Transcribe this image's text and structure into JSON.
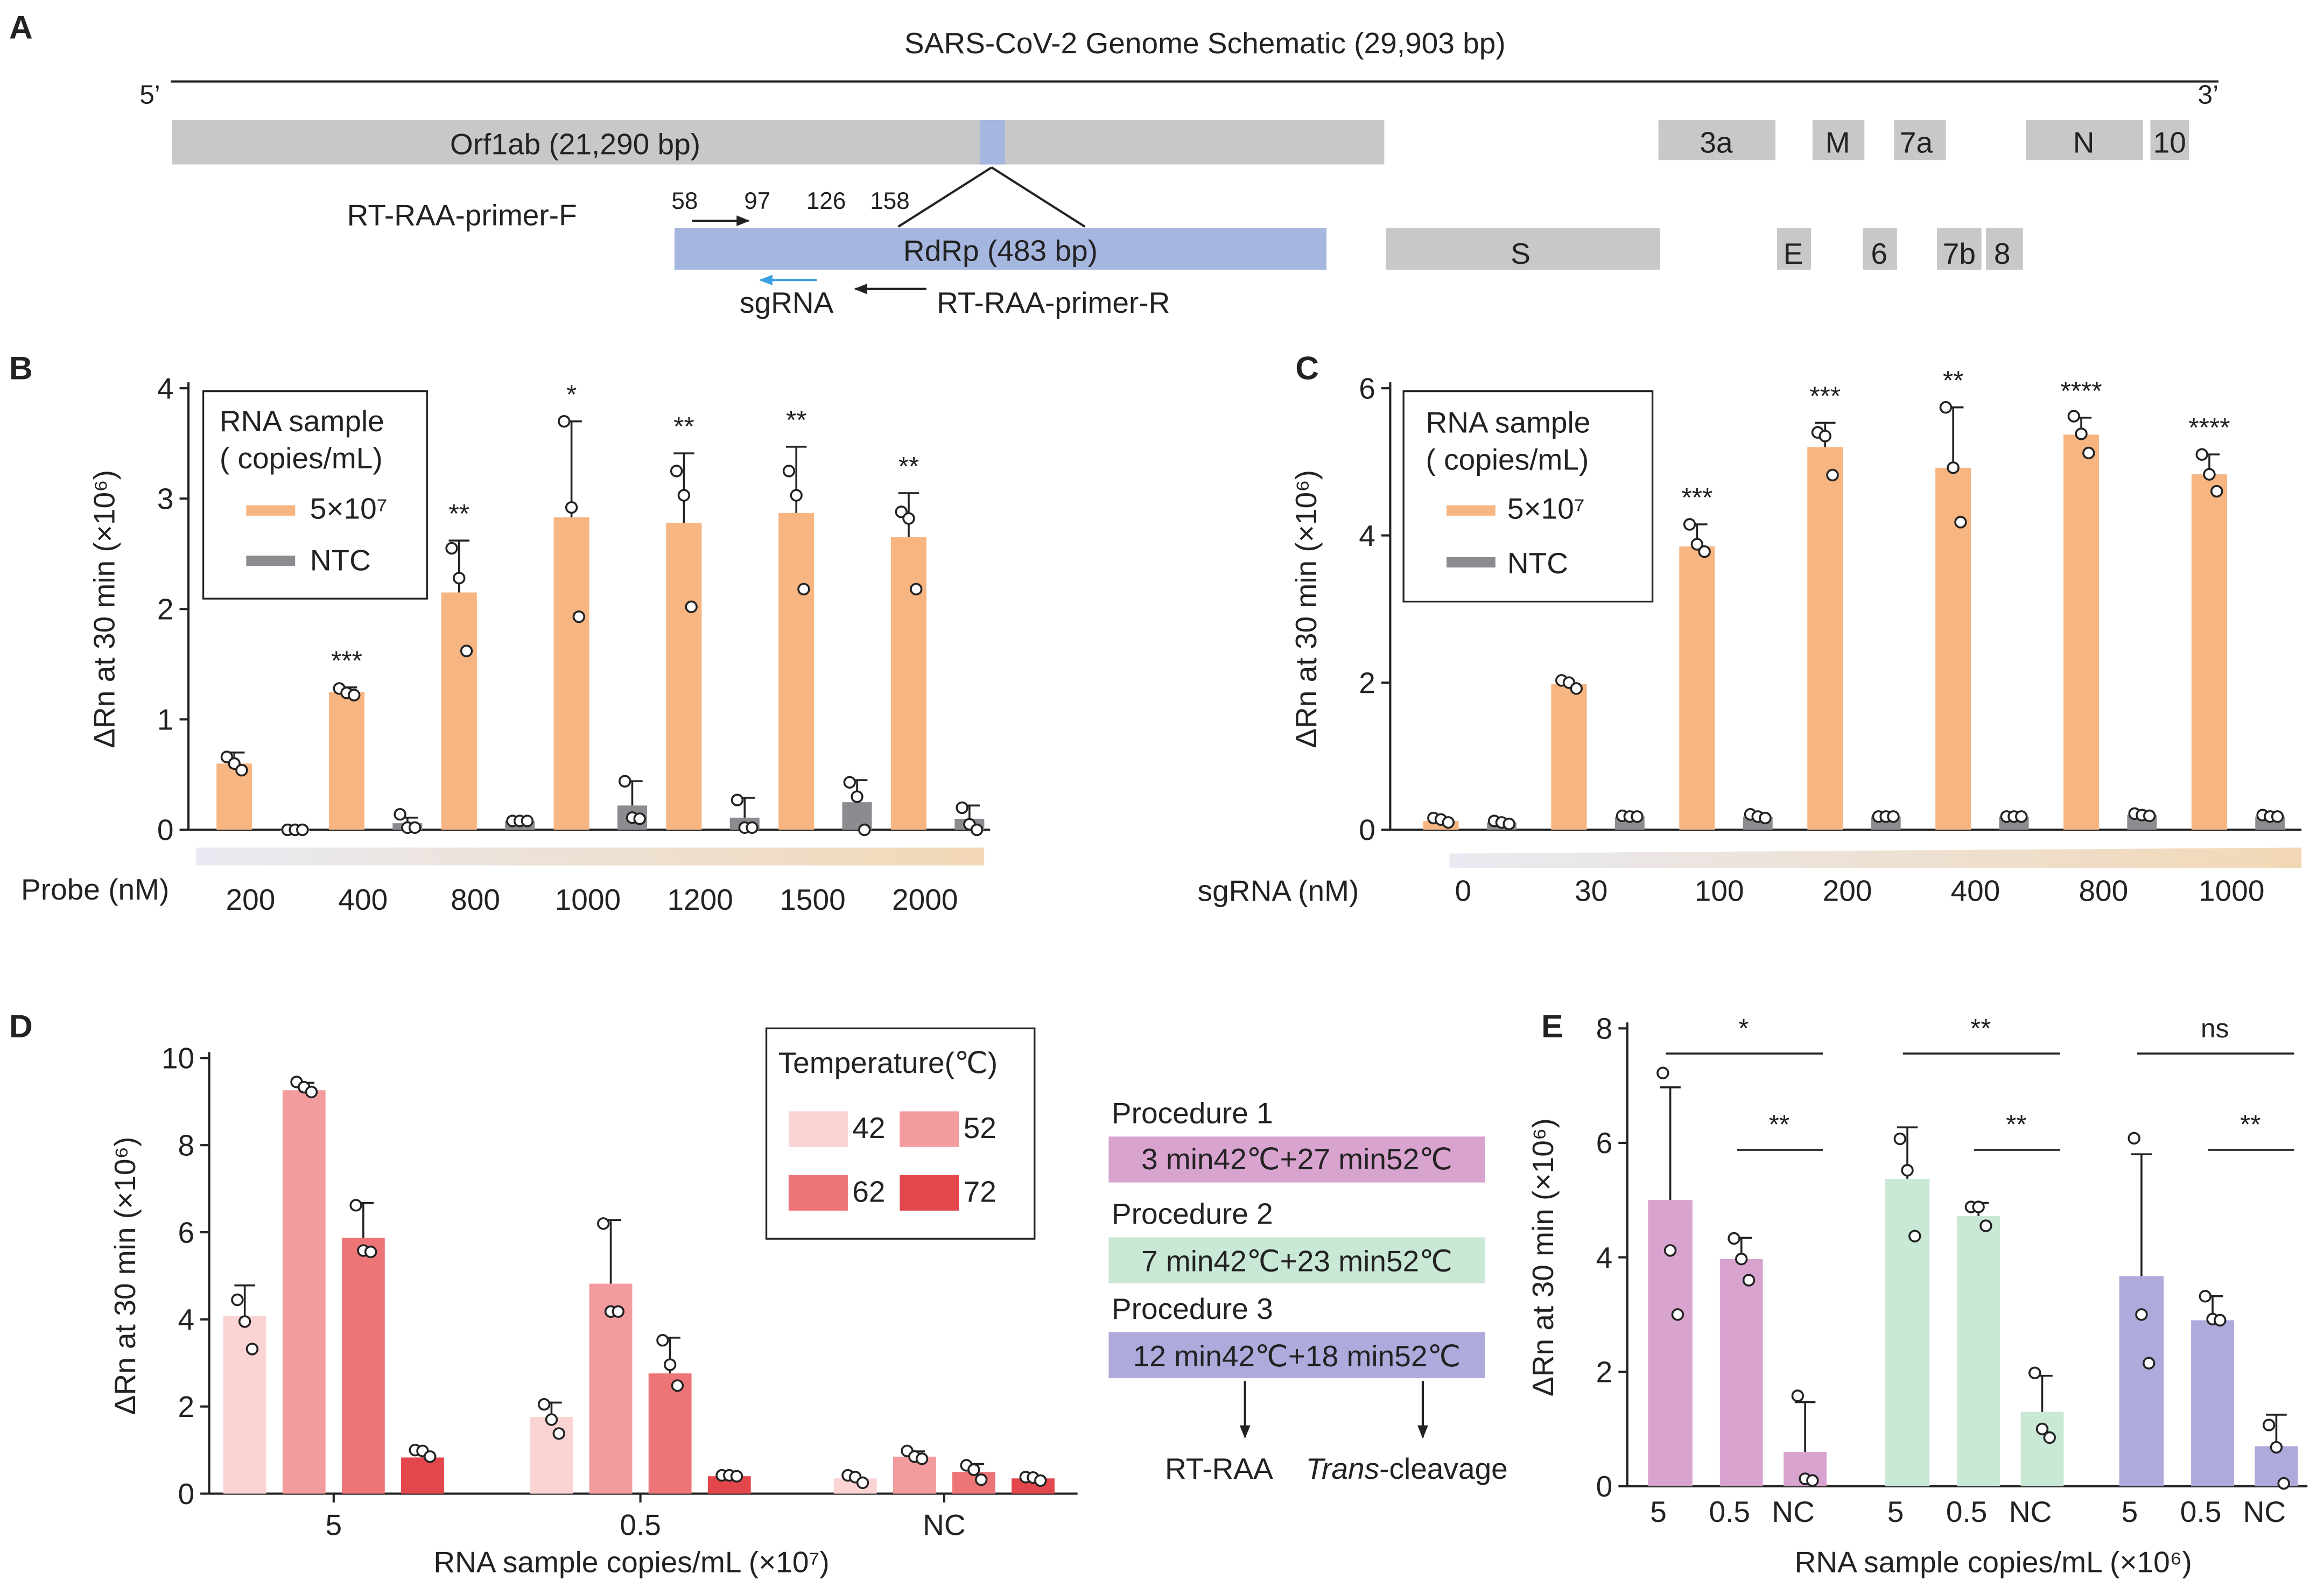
{
  "colors": {
    "gene_gray": "#c8c8ca",
    "rdrp_blue": "#a5b6df",
    "orange": "#f7b581",
    "ntc_gray": "#8c8c90",
    "sgrna_arrow": "#3a9fe0",
    "t42": "#fad3d2",
    "t52": "#f29c9e",
    "t62": "#ed7577",
    "t72": "#e3474c",
    "proc1": "#d8a3cf",
    "proc2": "#c9e8d6",
    "proc3": "#aeaadc",
    "gradient_start": "#e9eaf2",
    "gradient_end": "#f2d8b6"
  },
  "panelA": {
    "letter": "A",
    "title": "SARS-CoV-2  Genome Schematic (29,903 bp)",
    "end5": "5’",
    "end3": "3’",
    "orf1ab": "Orf1ab (21,290 bp)",
    "genes_top": [
      "3a",
      "M",
      "7a",
      "N",
      "10"
    ],
    "genes_bottom": [
      "S",
      "E",
      "6",
      "7b",
      "8"
    ],
    "rdrp": "RdRp (483 bp)",
    "primer_f": "RT-RAA-primer-F",
    "primer_r": "RT-RAA-primer-R",
    "sgrna": "sgRNA",
    "positions": [
      "58",
      "97",
      "126",
      "158"
    ]
  },
  "panelB": {
    "letter": "B",
    "legend_title": [
      "RNA sample",
      "( copies/mL)"
    ],
    "legend_items": [
      "5×10⁷",
      "NTC"
    ],
    "xaxis_title": "Probe (nM)"
  },
  "panelC": {
    "letter": "C",
    "legend_title": [
      "RNA sample",
      "( copies/mL)"
    ],
    "legend_items": [
      "5×10⁷",
      "NTC"
    ],
    "xaxis_title": "sgRNA (nM)"
  },
  "panelD": {
    "letter": "D",
    "legend_title": "Temperature(℃)",
    "procedures": [
      {
        "title": "Procedure 1",
        "text": "3 min42℃+27 min52℃"
      },
      {
        "title": "Procedure 2",
        "text": "7 min42℃+23 min52℃"
      },
      {
        "title": "Procedure 3",
        "text": "12 min42℃+18 min52℃"
      }
    ],
    "flow_left": "RT-RAA",
    "flow_right_italic": "Trans",
    "flow_right_rest": "-cleavage"
  },
  "panelE": {
    "letter": "E"
  },
  "chart_data": [
    {
      "id": "B",
      "type": "bar",
      "title": "",
      "ylabel": "ΔRn at 30 min  (×10⁶)",
      "xlabel": "Probe (nM)",
      "ylim": [
        0,
        4
      ],
      "yticks": [
        0,
        1,
        2,
        3,
        4
      ],
      "categories": [
        "200",
        "400",
        "800",
        "1000",
        "1200",
        "1500",
        "2000"
      ],
      "series": [
        {
          "name": "5×10⁷",
          "values": [
            0.6,
            1.25,
            2.15,
            2.83,
            2.78,
            2.87,
            2.65
          ],
          "errors": [
            0.1,
            0.04,
            0.47,
            0.87,
            0.63,
            0.6,
            0.4
          ],
          "points": [
            [
              0.66,
              0.6,
              0.54
            ],
            [
              1.28,
              1.24,
              1.22
            ],
            [
              2.55,
              2.28,
              1.62
            ],
            [
              3.7,
              2.92,
              1.93
            ],
            [
              3.25,
              3.03,
              2.02
            ],
            [
              3.25,
              3.03,
              2.18
            ],
            [
              2.88,
              2.82,
              2.18
            ]
          ]
        },
        {
          "name": "NTC",
          "values": [
            0.0,
            0.06,
            0.08,
            0.22,
            0.11,
            0.25,
            0.1
          ],
          "errors": [
            0.0,
            0.05,
            0.0,
            0.22,
            0.18,
            0.2,
            0.12
          ],
          "points": [
            [
              0.0,
              0.0,
              0.0
            ],
            [
              0.14,
              0.02,
              0.02
            ],
            [
              0.08,
              0.08,
              0.08
            ],
            [
              0.44,
              0.11,
              0.1
            ],
            [
              0.27,
              0.02,
              0.02
            ],
            [
              0.43,
              0.3,
              0.0
            ],
            [
              0.2,
              0.05,
              0.0
            ]
          ]
        }
      ],
      "significance": [
        "",
        "***",
        "**",
        "*",
        "**",
        "**",
        "**"
      ],
      "legend": "top-left"
    },
    {
      "id": "C",
      "type": "bar",
      "title": "",
      "ylabel": "ΔRn at 30 min  (×10⁶)",
      "xlabel": "sgRNA (nM)",
      "ylim": [
        0,
        6
      ],
      "yticks": [
        0,
        2,
        4,
        6
      ],
      "categories": [
        "0",
        "30",
        "100",
        "200",
        "400",
        "800",
        "1000"
      ],
      "series": [
        {
          "name": "5×10⁷",
          "values": [
            0.12,
            1.98,
            3.85,
            5.2,
            4.92,
            5.37,
            4.83
          ],
          "errors": [
            0.0,
            0.0,
            0.3,
            0.33,
            0.82,
            0.23,
            0.27
          ],
          "points": [
            [
              0.16,
              0.14,
              0.1
            ],
            [
              2.03,
              2.0,
              1.92
            ],
            [
              4.15,
              3.88,
              3.78
            ],
            [
              5.4,
              5.35,
              4.82
            ],
            [
              5.74,
              4.92,
              4.18
            ],
            [
              5.62,
              5.38,
              5.12
            ],
            [
              5.1,
              4.83,
              4.6
            ]
          ]
        },
        {
          "name": "NTC",
          "values": [
            0.1,
            0.18,
            0.18,
            0.18,
            0.18,
            0.2,
            0.18
          ],
          "errors": [
            0.0,
            0.0,
            0.0,
            0.0,
            0.0,
            0.0,
            0.0
          ],
          "points": [
            [
              0.12,
              0.1,
              0.08
            ],
            [
              0.19,
              0.18,
              0.18
            ],
            [
              0.21,
              0.18,
              0.16
            ],
            [
              0.18,
              0.18,
              0.18
            ],
            [
              0.18,
              0.18,
              0.18
            ],
            [
              0.22,
              0.2,
              0.19
            ],
            [
              0.2,
              0.18,
              0.18
            ]
          ]
        }
      ],
      "significance": [
        "",
        "",
        "***",
        "***",
        "**",
        "****",
        "****"
      ],
      "legend": "top-left"
    },
    {
      "id": "D",
      "type": "bar",
      "title": "",
      "ylabel": "ΔRn at 30 min  (×10⁶)",
      "xlabel": "RNA sample copies/mL (×10⁷)",
      "ylim": [
        0,
        10
      ],
      "yticks": [
        0,
        2,
        4,
        6,
        8,
        10
      ],
      "categories": [
        "5",
        "0.5",
        "NC"
      ],
      "series": [
        {
          "name": "42",
          "values": [
            4.08,
            1.76,
            0.35
          ],
          "errors": [
            0.7,
            0.33,
            0.0
          ],
          "points": [
            [
              4.45,
              3.95,
              3.32
            ],
            [
              2.05,
              1.7,
              1.38
            ],
            [
              0.42,
              0.38,
              0.25
            ]
          ]
        },
        {
          "name": "52",
          "values": [
            9.26,
            4.82,
            0.85
          ],
          "errors": [
            0.17,
            1.46,
            0.12
          ],
          "points": [
            [
              9.45,
              9.33,
              9.22
            ],
            [
              6.2,
              4.18,
              4.18
            ],
            [
              0.98,
              0.85,
              0.8
            ]
          ]
        },
        {
          "name": "62",
          "values": [
            5.87,
            2.76,
            0.5
          ],
          "errors": [
            0.8,
            0.82,
            0.18
          ],
          "points": [
            [
              6.62,
              5.58,
              5.55
            ],
            [
              3.52,
              2.96,
              2.48
            ],
            [
              0.65,
              0.55,
              0.32
            ]
          ]
        },
        {
          "name": "72",
          "values": [
            0.83,
            0.4,
            0.35
          ],
          "errors": [
            0.13,
            0.0,
            0.0
          ],
          "points": [
            [
              1.0,
              0.98,
              0.85
            ],
            [
              0.42,
              0.42,
              0.4
            ],
            [
              0.38,
              0.37,
              0.3
            ]
          ]
        }
      ],
      "legend": "top-right"
    },
    {
      "id": "E",
      "type": "bar",
      "title": "",
      "ylabel": "ΔRn at 30 min  (×10⁶)",
      "xlabel": "RNA sample copies/mL (×10⁶)",
      "ylim": [
        0,
        8
      ],
      "yticks": [
        0,
        2,
        4,
        6,
        8
      ],
      "groups": [
        {
          "categories": [
            "5",
            "0.5",
            "NC"
          ],
          "values": [
            5.0,
            3.97,
            0.6
          ],
          "errors": [
            1.97,
            0.37,
            0.87
          ],
          "points": [
            [
              7.22,
              4.12,
              3.0
            ],
            [
              4.33,
              3.97,
              3.6
            ],
            [
              1.58,
              0.13,
              0.1
            ]
          ],
          "sig_wide": "*",
          "sig_narrow": "**"
        },
        {
          "categories": [
            "5",
            "0.5",
            "NC"
          ],
          "values": [
            5.37,
            4.72,
            1.3
          ],
          "errors": [
            0.9,
            0.23,
            0.63
          ],
          "points": [
            [
              6.07,
              5.52,
              4.37
            ],
            [
              4.88,
              4.88,
              4.55
            ],
            [
              1.98,
              1.0,
              0.85
            ]
          ],
          "sig_wide": "**",
          "sig_narrow": "**"
        },
        {
          "categories": [
            "5",
            "0.5",
            "NC"
          ],
          "values": [
            3.67,
            2.9,
            0.7
          ],
          "errors": [
            2.13,
            0.42,
            0.55
          ],
          "points": [
            [
              6.08,
              3.0,
              2.15
            ],
            [
              3.32,
              2.92,
              2.9
            ],
            [
              1.07,
              0.68,
              0.05
            ]
          ],
          "sig_wide": "ns",
          "sig_narrow": "**"
        }
      ],
      "legend": "none"
    }
  ]
}
